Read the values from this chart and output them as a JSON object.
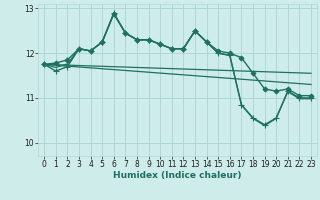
{
  "xlabel": "Humidex (Indice chaleur)",
  "bg_color": "#ceecea",
  "grid_color": "#afd8d5",
  "line_color": "#1e7060",
  "xlim": [
    -0.5,
    23.5
  ],
  "ylim": [
    9.7,
    13.1
  ],
  "yticks": [
    10,
    11,
    12,
    13
  ],
  "xticks": [
    0,
    1,
    2,
    3,
    4,
    5,
    6,
    7,
    8,
    9,
    10,
    11,
    12,
    13,
    14,
    15,
    16,
    17,
    18,
    19,
    20,
    21,
    22,
    23
  ],
  "series": [
    {
      "x": [
        0,
        1,
        2,
        3,
        4,
        5,
        6,
        7,
        8,
        9,
        10,
        11,
        12,
        13,
        14,
        15,
        16,
        17,
        18,
        19,
        20,
        21,
        22,
        23
      ],
      "y": [
        11.75,
        11.78,
        11.85,
        12.1,
        12.05,
        12.25,
        12.88,
        12.45,
        12.3,
        12.3,
        12.2,
        12.1,
        12.1,
        12.5,
        12.25,
        12.05,
        12.0,
        11.9,
        11.55,
        11.2,
        11.15,
        11.2,
        11.05,
        11.05
      ],
      "marker": "D",
      "markersize": 2.5,
      "linewidth": 1.0
    },
    {
      "x": [
        0,
        1,
        2,
        3,
        4,
        5,
        6,
        7,
        8,
        9,
        10,
        11,
        12,
        13,
        14,
        15,
        16,
        17,
        18,
        19,
        20,
        21,
        22,
        23
      ],
      "y": [
        11.75,
        11.6,
        11.7,
        12.1,
        12.05,
        12.25,
        12.9,
        12.45,
        12.3,
        12.3,
        12.2,
        12.1,
        12.1,
        12.5,
        12.25,
        12.0,
        11.95,
        10.85,
        10.55,
        10.4,
        10.55,
        11.15,
        11.0,
        11.0
      ],
      "marker": "+",
      "markersize": 4,
      "linewidth": 1.0
    },
    {
      "x": [
        0,
        1,
        2,
        3,
        4,
        5,
        6,
        7,
        8,
        9,
        10,
        11,
        12,
        13,
        14,
        15,
        16,
        17,
        18,
        19,
        20,
        21,
        22,
        23
      ],
      "y": [
        11.75,
        11.68,
        11.76,
        12.1,
        12.05,
        12.25,
        12.88,
        12.45,
        12.3,
        12.3,
        12.2,
        12.1,
        12.1,
        12.5,
        12.25,
        12.0,
        11.95,
        10.84,
        10.54,
        10.38,
        10.54,
        11.14,
        10.98,
        10.98
      ],
      "marker": null,
      "markersize": 0,
      "linewidth": 0.9
    },
    {
      "x": [
        0,
        23
      ],
      "y": [
        11.75,
        11.3
      ],
      "marker": null,
      "markersize": 0,
      "linewidth": 0.9
    },
    {
      "x": [
        0,
        23
      ],
      "y": [
        11.75,
        11.55
      ],
      "marker": null,
      "markersize": 0,
      "linewidth": 0.9
    }
  ]
}
